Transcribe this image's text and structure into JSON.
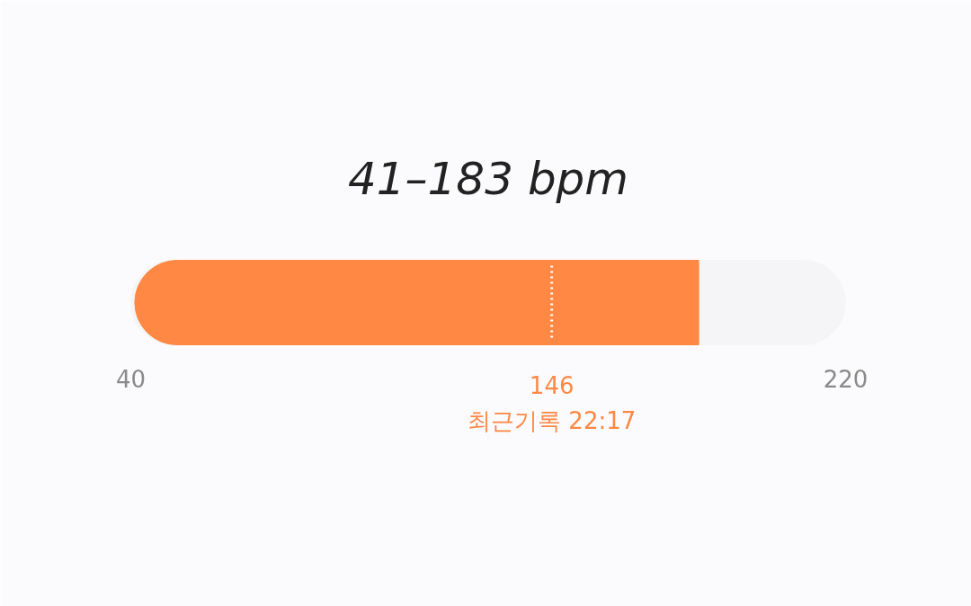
{
  "chart_data": {
    "type": "bar",
    "orientation": "horizontal",
    "title": "41–183 bpm",
    "categories": [
      null
    ],
    "base": [
      41
    ],
    "values": [
      142
    ],
    "color": "#ff8844",
    "xlim": [
      40,
      220
    ],
    "xticks": [
      40,
      220
    ],
    "ref_lines": [
      {
        "axis": "x",
        "value": 146,
        "label": "146\n최근기록 22:17",
        "color": "#ffffff",
        "line_style": "dotted"
      }
    ]
  }
}
